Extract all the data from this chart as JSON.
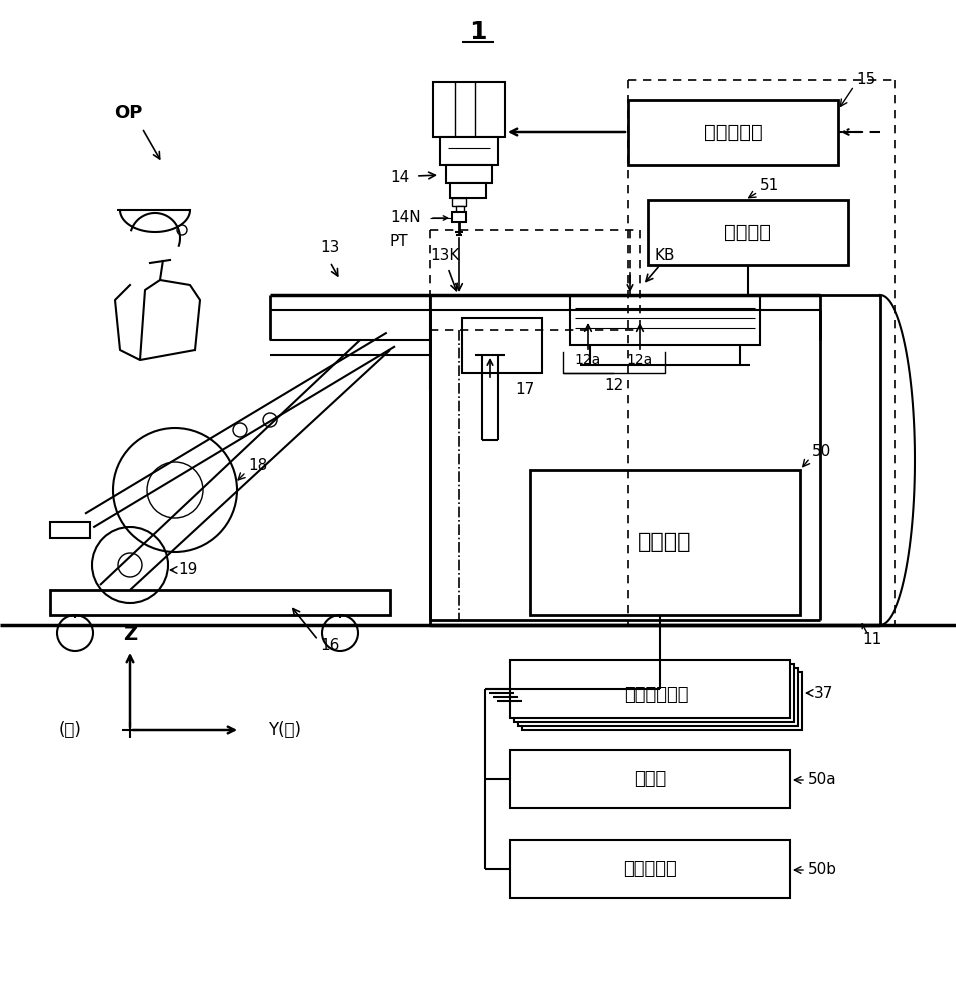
{
  "bg_color": "#ffffff",
  "fig_label": "1",
  "op_label": "OP",
  "box_15_label": "头移动机构",
  "box_51_label": "触摸面板",
  "box_50_label": "控制装置",
  "box_37_label": "供料器控制部",
  "box_50a_label": "判断部",
  "box_50b_label": "通知控制部",
  "label_13": "13",
  "label_14": "14",
  "label_14N": "14N",
  "label_PT": "PT",
  "label_13K": "13K",
  "label_KB": "KB",
  "label_12a1": "12a",
  "label_12a2": "12a",
  "label_12": "12",
  "label_15": "15",
  "label_51": "51",
  "label_50": "50",
  "label_37": "37",
  "label_50a": "50a",
  "label_50b": "50b",
  "label_17": "17",
  "label_16": "16",
  "label_18": "18",
  "label_19": "19",
  "label_11": "11",
  "coord_z": "Z",
  "coord_y": "Y(前)",
  "coord_back": "(后)"
}
